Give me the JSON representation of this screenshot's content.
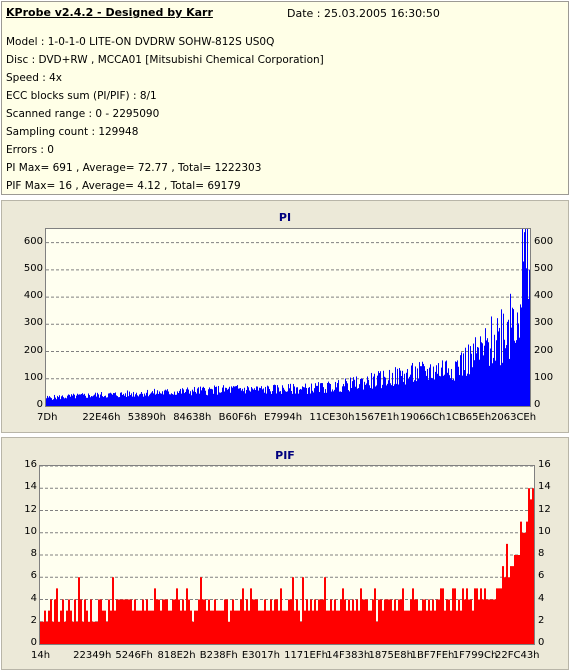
{
  "header": {
    "title": "KProbe v2.4.2 - Designed by Karr",
    "date": "Date : 25.03.2005 16:30:50"
  },
  "info_lines": [
    "Model : 1-0-1-0 LITE-ON DVDRW SOHW-812S  US0Q",
    "Disc : DVD+RW , MCCA01 [Mitsubishi Chemical Corporation]",
    "Speed : 4x",
    "ECC blocks sum (PI/PIF) : 8/1",
    "Scanned range : 0 - 2295090",
    "Sampling count : 129948",
    "Errors : 0",
    "PI Max= 691 , Average= 72.77 , Total= 1222303",
    "PIF Max= 16 , Average= 4.12 , Total= 69179"
  ],
  "chart_data": [
    {
      "type": "area",
      "title": "PI",
      "color": "#0000ff",
      "ylim": [
        0,
        650
      ],
      "yticks": [
        "0",
        "100",
        "200",
        "300",
        "400",
        "500",
        "600"
      ],
      "xticks": [
        "7Dh",
        "22E46h",
        "53890h",
        "84638h",
        "B60F6h",
        "E7994h",
        "11CE30h",
        "1567E1h",
        "19066Ch",
        "1CB65Eh",
        "2063CEh"
      ],
      "grid": true,
      "x": [
        0,
        0.05,
        0.1,
        0.15,
        0.2,
        0.25,
        0.3,
        0.35,
        0.4,
        0.45,
        0.5,
        0.55,
        0.6,
        0.65,
        0.7,
        0.75,
        0.8,
        0.85,
        0.88,
        0.91,
        0.94,
        0.96,
        0.98,
        0.99,
        1.0
      ],
      "values": [
        30,
        35,
        40,
        42,
        48,
        50,
        55,
        58,
        62,
        60,
        62,
        65,
        72,
        85,
        100,
        115,
        130,
        150,
        175,
        210,
        270,
        330,
        420,
        480,
        570
      ]
    },
    {
      "type": "area",
      "title": "PIF",
      "color": "#ff0000",
      "ylim": [
        0,
        16
      ],
      "yticks": [
        "0",
        "2",
        "4",
        "6",
        "8",
        "10",
        "12",
        "14",
        "16"
      ],
      "xticks": [
        "14h",
        "22349h",
        "5246Fh",
        "818E2h",
        "B238Fh",
        "E3017h",
        "1171EFh",
        "14F383h",
        "1875E8h",
        "1BF7FEh",
        "1F799Ch",
        "22FC43h"
      ],
      "grid": true,
      "x": [
        0,
        0.1,
        0.2,
        0.3,
        0.4,
        0.5,
        0.6,
        0.7,
        0.8,
        0.85,
        0.9,
        0.93,
        0.95,
        0.97,
        0.99,
        1.0
      ],
      "values": [
        3,
        3,
        3.5,
        3.5,
        3.5,
        3.5,
        3.5,
        3.5,
        3.5,
        3.8,
        4,
        5,
        7,
        9,
        13,
        15
      ]
    }
  ]
}
